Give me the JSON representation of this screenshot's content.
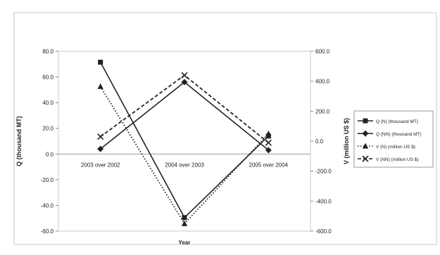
{
  "chart_data": {
    "type": "line",
    "categories": [
      "2003 over 2002",
      "2004 over 2003",
      "2005 over 2004"
    ],
    "xlabel": "Year",
    "ylabel_left": "Q (thousand MT)",
    "ylabel_right": "V (million US $)",
    "ylim_left": [
      -60,
      80
    ],
    "ylim_right": [
      -600,
      600
    ],
    "yticks_left": [
      "80.0",
      "60.0",
      "40.0",
      "20.0",
      "0.0",
      "-20.0",
      "-40.0",
      "-60.0"
    ],
    "yticks_right": [
      "600.0",
      "400.0",
      "200.0",
      "0.0",
      "-200.0",
      "-400.0",
      "-600.0"
    ],
    "legend_position": "right",
    "series": [
      {
        "name": "Q (N) (thousand  MT)",
        "axis": "left",
        "values": [
          71.5,
          -49.5,
          14.0
        ],
        "marker": "square",
        "dash": "solid"
      },
      {
        "name": "Q (NN) (thousand  MT)",
        "axis": "left",
        "values": [
          4.0,
          56.0,
          3.0
        ],
        "marker": "diamond",
        "dash": "solid"
      },
      {
        "name": "V (N) (million US $)",
        "axis": "right",
        "values": [
          365,
          -550,
          50
        ],
        "marker": "triangle",
        "dash": "dot"
      },
      {
        "name": "V (NN) (million US $)",
        "axis": "right",
        "values": [
          30,
          440,
          -10
        ],
        "marker": "x",
        "dash": "dash"
      }
    ]
  }
}
